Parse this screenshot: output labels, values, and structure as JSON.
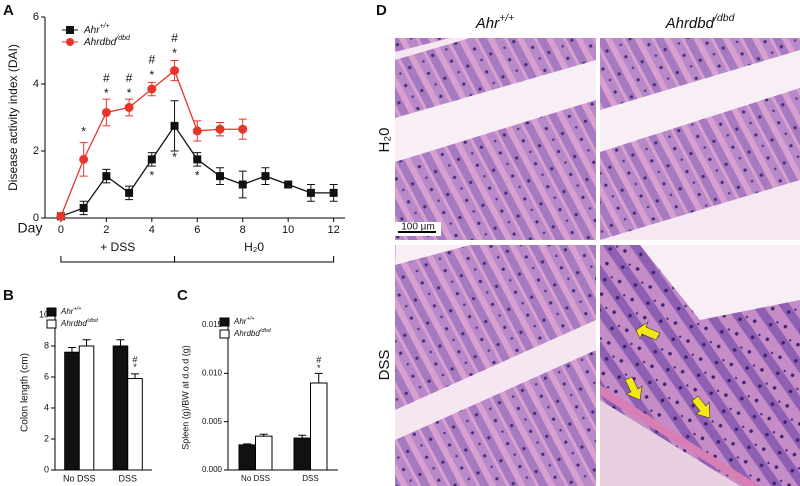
{
  "chart_data": [
    {
      "type": "line",
      "panel": "A",
      "y_label": "Disease activity index (DAI)",
      "x_label": "Day",
      "x": [
        0,
        1,
        2,
        3,
        4,
        5,
        6,
        7,
        8,
        9,
        10,
        11,
        12
      ],
      "xlim": [
        -0.7,
        12.5
      ],
      "xticks": [
        0,
        2,
        4,
        6,
        8,
        10,
        12
      ],
      "ylim": [
        0,
        6
      ],
      "yticks": [
        0,
        2,
        4,
        6
      ],
      "series": [
        {
          "name": "Ahr+/+",
          "color": "#111111",
          "marker": "square",
          "values": [
            0.05,
            0.3,
            1.25,
            0.75,
            1.75,
            2.75,
            1.75,
            1.25,
            1.0,
            1.25,
            1.0,
            0.75,
            0.75
          ],
          "errors": [
            0,
            0.2,
            0.2,
            0.2,
            0.2,
            0.75,
            0.2,
            0.25,
            0.4,
            0.25,
            0.05,
            0.25,
            0.25
          ]
        },
        {
          "name": "Ahrdbd/dbd",
          "color": "#e8352a",
          "marker": "circle",
          "values": [
            0.05,
            1.75,
            3.15,
            3.3,
            3.85,
            4.4,
            2.6,
            2.65,
            2.65,
            null,
            null,
            null,
            null
          ],
          "errors": [
            0,
            0.5,
            0.4,
            0.25,
            0.2,
            0.3,
            0.3,
            0.2,
            0.3,
            null,
            null,
            null,
            null
          ]
        }
      ],
      "annotations": [
        {
          "x": 1,
          "y": 2.55,
          "text": "*"
        },
        {
          "x": 2,
          "y": 3.7,
          "text": "*"
        },
        {
          "x": 2,
          "y": 4.15,
          "text": "#"
        },
        {
          "x": 3,
          "y": 3.7,
          "text": "*"
        },
        {
          "x": 3,
          "y": 4.15,
          "text": "#"
        },
        {
          "x": 4,
          "y": 4.25,
          "text": "*"
        },
        {
          "x": 4,
          "y": 4.7,
          "text": "#"
        },
        {
          "x": 5,
          "y": 4.9,
          "text": "*"
        },
        {
          "x": 5,
          "y": 5.35,
          "text": "#"
        },
        {
          "x": 4,
          "y": 1.25,
          "text": "*"
        },
        {
          "x": 5,
          "y": 1.8,
          "text": "*"
        },
        {
          "x": 6,
          "y": 1.25,
          "text": "*"
        }
      ],
      "phases": [
        {
          "label": "+ DSS",
          "start": 0,
          "end": 5
        },
        {
          "label": "H₂0",
          "start": 5,
          "end": 12
        }
      ]
    },
    {
      "type": "bar",
      "panel": "B",
      "y_label": "Colon length (cm)",
      "categories": [
        "No DSS",
        "DSS"
      ],
      "ylim": [
        0,
        10
      ],
      "yticks": [
        0,
        2,
        4,
        6,
        8,
        10
      ],
      "series": [
        {
          "name": "Ahr+/+",
          "color": "#111111",
          "values": [
            7.6,
            8.0
          ],
          "errors": [
            0.3,
            0.4
          ]
        },
        {
          "name": "Ahrdbd/dbd",
          "color": "#ffffff",
          "values": [
            8.0,
            5.9
          ],
          "errors": [
            0.4,
            0.3
          ]
        }
      ],
      "annotations": [
        {
          "series": 1,
          "index": 1,
          "y": 6.6,
          "text": "*"
        },
        {
          "series": 1,
          "index": 1,
          "y": 7.1,
          "text": "#"
        }
      ]
    },
    {
      "type": "bar",
      "panel": "C",
      "y_label": "Spleen (g)/BW at d.o.d (g)",
      "categories": [
        "No DSS",
        "DSS"
      ],
      "ylim": [
        0,
        0.015
      ],
      "yticks": [
        {
          "value": 0,
          "label": "0.000"
        },
        {
          "value": 0.005,
          "label": "0.005"
        },
        {
          "value": 0.01,
          "label": "0.010"
        },
        {
          "value": 0.015,
          "label": "0.015"
        }
      ],
      "series": [
        {
          "name": "Ahr+/+",
          "color": "#111111",
          "values": [
            0.0026,
            0.0033
          ],
          "errors": [
            0.0001,
            0.0003
          ]
        },
        {
          "name": "Ahrdbd/dbd",
          "color": "#ffffff",
          "values": [
            0.0035,
            0.009
          ],
          "errors": [
            0.0002,
            0.001
          ]
        }
      ],
      "annotations": [
        {
          "series": 1,
          "index": 1,
          "y": 0.0105,
          "text": "*"
        },
        {
          "series": 1,
          "index": 1,
          "y": 0.0113,
          "text": "#"
        }
      ]
    }
  ],
  "figure_d": {
    "panel": "D",
    "columns": [
      "Ahr+/+",
      "Ahrdbd/dbd"
    ],
    "rows": [
      "H₂0",
      "DSS"
    ],
    "scale_bar": "100 µm"
  }
}
